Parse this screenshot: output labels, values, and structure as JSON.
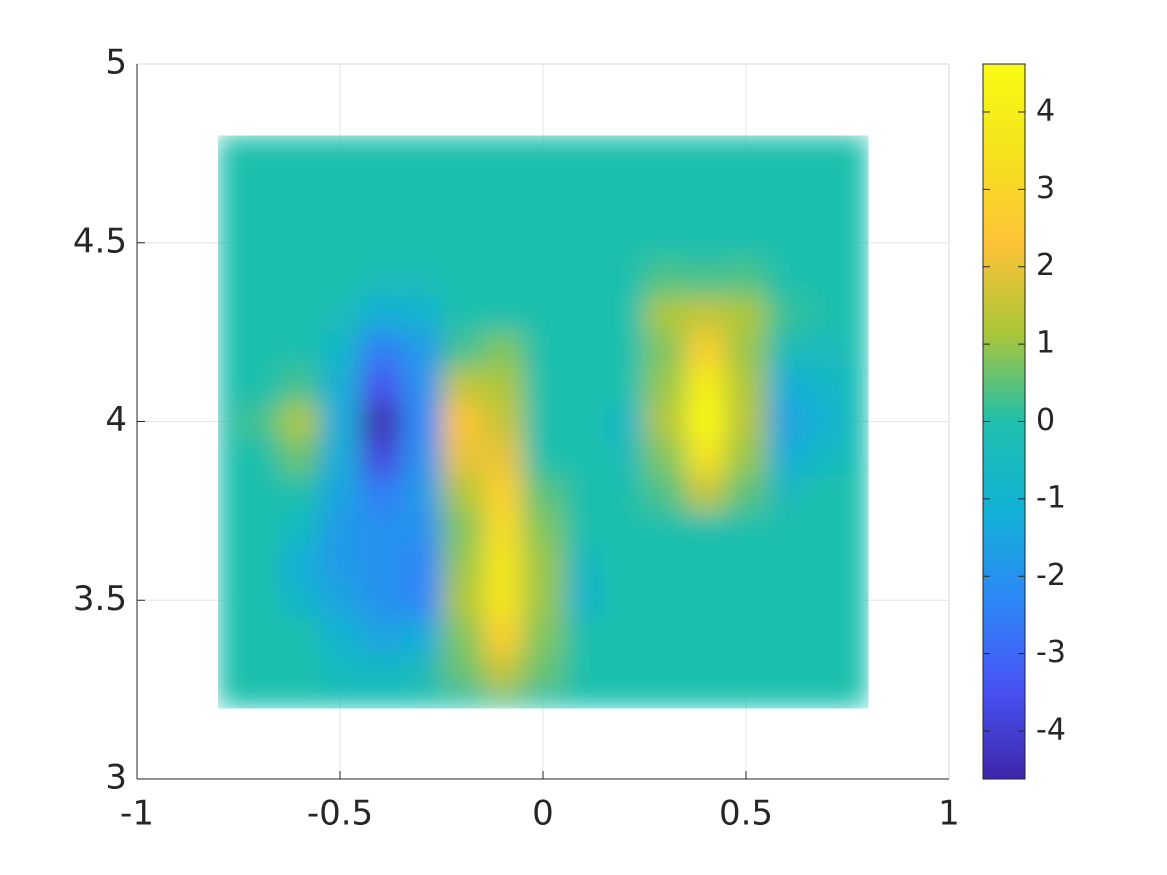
{
  "chart_data": {
    "type": "heatmap",
    "colormap": "parula",
    "grid": true,
    "x": [
      -0.8,
      -0.7,
      -0.6,
      -0.5,
      -0.4,
      -0.3,
      -0.2,
      -0.1,
      0,
      0.1,
      0.2,
      0.3,
      0.4,
      0.5,
      0.6,
      0.7,
      0.8
    ],
    "y": [
      4.8,
      4.7,
      4.6,
      4.5,
      4.4,
      4.3,
      4.2,
      4.1,
      4.0,
      3.9,
      3.8,
      3.7,
      3.6,
      3.5,
      3.4,
      3.3,
      3.2
    ],
    "z": [
      [
        0,
        0,
        0,
        0,
        0,
        0,
        0,
        0,
        0,
        0,
        0,
        0,
        0,
        0,
        0,
        0,
        0
      ],
      [
        0,
        0,
        0,
        0,
        0,
        0,
        0,
        0,
        0,
        0,
        0,
        0,
        0,
        0,
        0,
        0,
        0
      ],
      [
        0,
        0,
        0,
        0,
        0,
        0,
        0,
        0,
        0,
        0,
        0,
        0,
        0,
        0,
        0,
        0,
        0
      ],
      [
        0,
        0,
        0,
        0,
        0,
        0,
        0,
        0,
        0,
        0,
        0,
        0,
        0,
        0,
        0,
        0,
        0
      ],
      [
        0,
        0,
        0,
        0,
        -0.3,
        -0.3,
        0,
        0,
        0,
        0,
        0,
        0.4,
        0.3,
        0.4,
        0,
        0,
        0
      ],
      [
        0,
        0,
        0,
        -0.3,
        -1.2,
        -1.0,
        0,
        0,
        0,
        0,
        0,
        1.2,
        1.5,
        1.2,
        0.2,
        0,
        0
      ],
      [
        0,
        0,
        0,
        -0.8,
        -2.5,
        -1.8,
        0.3,
        0.8,
        0,
        0,
        0,
        0.8,
        2.8,
        1.0,
        -0.3,
        -0.4,
        0
      ],
      [
        0,
        0,
        0.3,
        -1.2,
        -3.5,
        -2.0,
        1.5,
        1.2,
        0,
        0,
        0,
        1.0,
        4.0,
        1.2,
        -1.2,
        -0.8,
        0
      ],
      [
        0,
        0.3,
        1.2,
        -1.3,
        -4.5,
        -2.2,
        2.4,
        1.5,
        0,
        0,
        -0.6,
        1.3,
        4.5,
        1.3,
        -1.5,
        -1.0,
        0
      ],
      [
        0,
        0,
        0.6,
        -1.3,
        -3.8,
        -2.0,
        2.0,
        2.0,
        0,
        0,
        -0.3,
        0.8,
        3.5,
        1.0,
        -1.2,
        -0.6,
        0
      ],
      [
        0,
        0,
        0,
        -1.5,
        -2.5,
        -1.8,
        1.2,
        2.8,
        0.5,
        0,
        0,
        0.4,
        1.5,
        0.5,
        -0.4,
        0,
        0
      ],
      [
        0,
        0,
        -0.5,
        -1.8,
        -2.0,
        -2.0,
        0.8,
        3.2,
        0.8,
        0,
        0,
        0,
        0,
        0,
        0,
        0,
        0
      ],
      [
        0,
        0,
        -1.2,
        -1.8,
        -2.0,
        -2.3,
        1.0,
        3.6,
        1.0,
        -0.5,
        0,
        0,
        0,
        0,
        0,
        0,
        0
      ],
      [
        0,
        0,
        -0.8,
        -1.5,
        -2.0,
        -2.3,
        1.2,
        3.6,
        1.0,
        -0.8,
        0,
        0,
        0,
        0,
        0,
        0,
        0
      ],
      [
        0,
        0,
        0,
        -1.0,
        -1.5,
        -1.3,
        0.8,
        2.8,
        0.8,
        0,
        0,
        0,
        0,
        0,
        0,
        0,
        0
      ],
      [
        0,
        0,
        0,
        -0.5,
        -0.6,
        -0.4,
        0.6,
        1.5,
        0.6,
        0,
        0,
        0,
        0,
        0,
        0,
        0,
        0
      ],
      [
        0,
        0,
        0,
        0,
        0,
        0,
        0,
        0.3,
        0,
        0,
        0,
        0,
        0,
        0,
        0,
        0,
        0
      ]
    ],
    "xlim": [
      -1,
      1
    ],
    "ylim": [
      3,
      5
    ],
    "xticks": [
      -1,
      -0.5,
      0,
      0.5,
      1
    ],
    "yticks": [
      3,
      3.5,
      4,
      4.5,
      5
    ],
    "clim": [
      -4.62,
      4.62
    ],
    "cticks": [
      -4,
      -3,
      -2,
      -1,
      0,
      1,
      2,
      3,
      4
    ]
  }
}
